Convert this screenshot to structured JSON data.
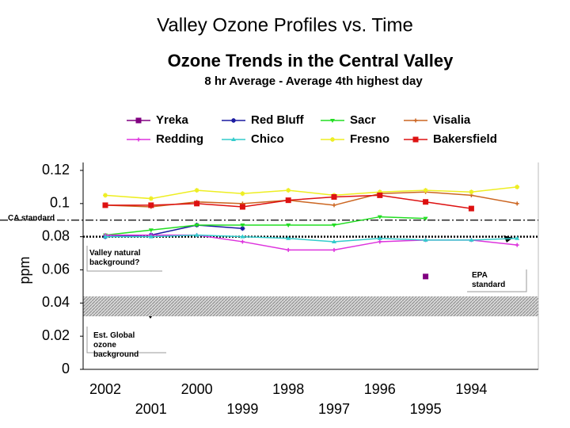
{
  "slide_title": "Valley Ozone Profiles vs. Time",
  "chart_data": {
    "type": "line",
    "title": "Ozone Trends in the Central Valley",
    "subtitle": "8 hr Average - Average 4th highest day",
    "y_label": "ppm",
    "categories": [
      "2002",
      "2001",
      "2000",
      "1999",
      "1998",
      "1997",
      "1996",
      "1995",
      "1994",
      null
    ],
    "ylim": [
      0,
      0.12
    ],
    "yticks": [
      0,
      0.02,
      0.04,
      0.06,
      0.08,
      0.1,
      0.12
    ],
    "series": [
      {
        "name": "Yreka",
        "color": "#800080",
        "marker": "square",
        "values": [
          null,
          null,
          null,
          null,
          null,
          null,
          null,
          0.056,
          null,
          null
        ]
      },
      {
        "name": "Red Bluff",
        "color": "#1a1aa0",
        "marker": "star",
        "values": [
          0.08,
          0.081,
          0.087,
          0.085,
          null,
          null,
          null,
          null,
          null,
          null
        ]
      },
      {
        "name": "Sacr",
        "color": "#22dd22",
        "marker": "tri-down",
        "values": [
          0.081,
          0.084,
          0.087,
          0.087,
          0.087,
          0.087,
          0.092,
          0.091,
          null,
          null
        ]
      },
      {
        "name": "Visalia",
        "color": "#cc6622",
        "marker": "plus",
        "values": [
          0.099,
          0.098,
          0.101,
          0.1,
          0.102,
          0.099,
          0.106,
          0.107,
          0.105,
          0.1
        ]
      },
      {
        "name": "Redding",
        "color": "#dd33dd",
        "marker": "plus",
        "values": [
          0.081,
          0.081,
          0.081,
          0.077,
          0.072,
          0.072,
          0.077,
          0.078,
          0.078,
          0.075
        ]
      },
      {
        "name": "Chico",
        "color": "#33cccc",
        "marker": "tri",
        "values": [
          0.08,
          0.08,
          0.081,
          0.08,
          0.079,
          0.077,
          0.079,
          0.078,
          0.078,
          0.079
        ]
      },
      {
        "name": "Fresno",
        "color": "#eeee22",
        "marker": "star",
        "values": [
          0.105,
          0.103,
          0.108,
          0.106,
          0.108,
          0.105,
          0.107,
          0.108,
          0.107,
          0.11
        ]
      },
      {
        "name": "Bakersfield",
        "color": "#dd1111",
        "marker": "square",
        "values": [
          0.099,
          0.099,
          0.1,
          0.098,
          0.102,
          0.104,
          0.105,
          0.101,
          0.097,
          null
        ]
      }
    ],
    "reference_lines": [
      {
        "label": "CA standard",
        "value": 0.09,
        "style": "dash-dot"
      },
      {
        "label": "EPA standard",
        "value": 0.08,
        "style": "dotted"
      }
    ],
    "band": {
      "range": [
        0.032,
        0.044
      ]
    },
    "annotations": [
      "Valley natural background?",
      "Est. Global ozone background"
    ]
  }
}
